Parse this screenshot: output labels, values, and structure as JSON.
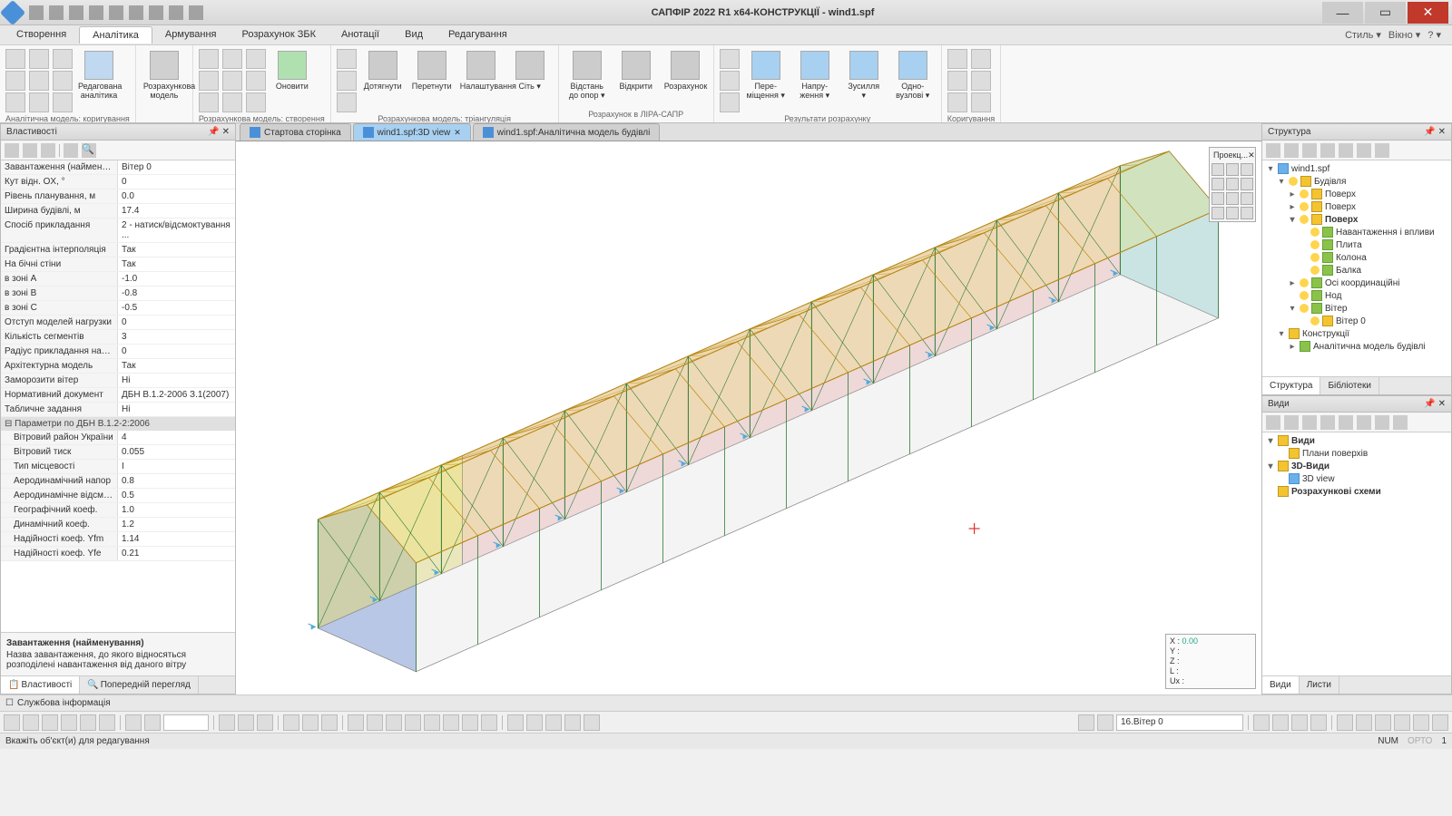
{
  "app": {
    "title": "САПФІР 2022 R1 x64-КОНСТРУКЦІЇ - wind1.spf"
  },
  "qat_count": 9,
  "menu": {
    "tabs": [
      "Створення",
      "Аналітика",
      "Армування",
      "Розрахунок ЗБК",
      "Анотації",
      "Вид",
      "Редагування"
    ],
    "active": 1,
    "right": [
      "Стиль ▾",
      "Вікно ▾",
      "? ▾"
    ]
  },
  "ribbon": {
    "groups": [
      {
        "label": "Аналітична модель: коригування",
        "big": [],
        "cols": 3,
        "trailing": [
          {
            "label": "Редагована\nаналітика",
            "icon": "#c0d8f0"
          }
        ]
      },
      {
        "label": "",
        "big": [
          {
            "label": "Розрахункова\nмодель",
            "icon": "#d0d0d0"
          }
        ]
      },
      {
        "label": "Розрахункова модель: створення",
        "big": [
          {
            "label": "Оновити",
            "icon": "#b0e0b0"
          }
        ],
        "cols": 3
      },
      {
        "label": "Розрахункова модель: тріангуляція",
        "big": [
          {
            "label": "Дотягнути",
            "icon": "#ccc"
          },
          {
            "label": "Перетнути",
            "icon": "#ccc"
          },
          {
            "label": "Налаштування",
            "icon": "#ccc"
          },
          {
            "label": "Сіть ▾",
            "icon": "#ccc"
          }
        ],
        "cols": 1
      },
      {
        "label": "Розрахунок в ЛІРА-САПР",
        "big": [
          {
            "label": "Відстань\nдо опор ▾",
            "icon": "#ccc"
          },
          {
            "label": "Відкрити",
            "icon": "#ccc"
          },
          {
            "label": "Розрахунок",
            "icon": "#ccc"
          }
        ]
      },
      {
        "label": "Результати розрахунку",
        "big": [
          {
            "label": "Пере-\nміщення ▾",
            "icon": "#a8d0f0"
          },
          {
            "label": "Напру-\nження ▾",
            "icon": "#a8d0f0"
          },
          {
            "label": "Зусилля\n▾",
            "icon": "#a8d0f0"
          },
          {
            "label": "Одно-\nвузлові ▾",
            "icon": "#a8d0f0"
          }
        ],
        "pre_col": true
      },
      {
        "label": "Коригування",
        "cols": 2
      }
    ]
  },
  "doc_tabs": [
    {
      "label": "Стартова сторінка",
      "active": false
    },
    {
      "label": "wind1.spf:3D view",
      "active": true,
      "closable": true
    },
    {
      "label": "wind1.spf:Аналітична модель будівлі",
      "active": false
    }
  ],
  "properties": {
    "title": "Властивості",
    "rows": [
      [
        "Завантаження (найменуван...",
        "Вітер 0"
      ],
      [
        "Кут відн. OX, °",
        "0"
      ],
      [
        "Рівень планування, м",
        "0.0"
      ],
      [
        "Ширина будівлі, м",
        "17.4"
      ],
      [
        "Спосіб прикладання",
        "2 - натиск/відсмоктування ..."
      ],
      [
        "Градієнтна інтерполяція",
        "Так"
      ],
      [
        "На бічні стіни",
        "Так"
      ],
      [
        "в зоні A",
        "-1.0"
      ],
      [
        "в зоні B",
        "-0.8"
      ],
      [
        "в зоні C",
        "-0.5"
      ],
      [
        "Отступ моделей нагрузки",
        "0"
      ],
      [
        "Кількість сегментів",
        "3"
      ],
      [
        "Радіус прикладання навант...",
        "0"
      ],
      [
        "Архітектурна модель",
        "Так"
      ],
      [
        "Заморозити вітер",
        "Ні"
      ],
      [
        "Нормативний документ",
        "ДБН В.1.2-2006 З.1(2007)"
      ],
      [
        "Табличне задання",
        "Ні"
      ]
    ],
    "section": "Параметри по ДБН В.1.2-2:2006",
    "rows2": [
      [
        "Вітровий район України",
        "4"
      ],
      [
        "Вітровий тиск",
        "0.055"
      ],
      [
        "Тип місцевості",
        "I"
      ],
      [
        "Аеродинамічний напор",
        "0.8"
      ],
      [
        "Аеродинамічне відсмокт...",
        "0.5"
      ],
      [
        "Географічний коеф.",
        "1.0"
      ],
      [
        "Динамічний коеф.",
        "1.2"
      ],
      [
        "Надійності коеф. Yfm",
        "1.14"
      ],
      [
        "Надійності коеф. Yfe",
        "0.21"
      ]
    ],
    "hint_title": "Завантаження (найменування)",
    "hint_body": "Назва завантаження, до якого відносяться розподілені навантаження від даного вітру",
    "tabs": [
      "Властивості",
      "Попередній перегляд"
    ]
  },
  "structure": {
    "title": "Структура",
    "items": [
      {
        "ind": 0,
        "toggle": "▾",
        "icon": "blue",
        "label": "wind1.spf"
      },
      {
        "ind": 1,
        "toggle": "▾",
        "bulb": true,
        "icon": "",
        "label": "Будівля"
      },
      {
        "ind": 2,
        "toggle": "▸",
        "bulb": true,
        "icon": "",
        "label": "Поверх"
      },
      {
        "ind": 2,
        "toggle": "▸",
        "bulb": true,
        "icon": "",
        "label": "Поверх"
      },
      {
        "ind": 2,
        "toggle": "▾",
        "bulb": true,
        "icon": "",
        "label": "Поверх",
        "bold": true
      },
      {
        "ind": 3,
        "toggle": "",
        "bulb": true,
        "icon": "green",
        "label": "Навантаження і впливи"
      },
      {
        "ind": 3,
        "toggle": "",
        "bulb": true,
        "icon": "green",
        "label": "Плита"
      },
      {
        "ind": 3,
        "toggle": "",
        "bulb": true,
        "icon": "green",
        "label": "Колона"
      },
      {
        "ind": 3,
        "toggle": "",
        "bulb": true,
        "icon": "green",
        "label": "Балка"
      },
      {
        "ind": 2,
        "toggle": "▸",
        "bulb": true,
        "icon": "green",
        "label": "Осі координаційні"
      },
      {
        "ind": 2,
        "toggle": "",
        "bulb": true,
        "icon": "green",
        "label": "Нод"
      },
      {
        "ind": 2,
        "toggle": "▾",
        "bulb": true,
        "icon": "green",
        "label": "Вітер"
      },
      {
        "ind": 3,
        "toggle": "",
        "bulb": true,
        "icon": "",
        "label": "Вітер 0"
      },
      {
        "ind": 1,
        "toggle": "▾",
        "icon": "",
        "label": "Конструкції"
      },
      {
        "ind": 2,
        "toggle": "▸",
        "icon": "green",
        "label": "Аналітична модель будівлі"
      }
    ],
    "tabs": [
      "Структура",
      "Бібліотеки"
    ]
  },
  "views": {
    "title": "Види",
    "items": [
      {
        "ind": 0,
        "toggle": "▾",
        "icon": "",
        "label": "Види",
        "bold": true
      },
      {
        "ind": 1,
        "toggle": "",
        "icon": "",
        "label": "Плани поверхів"
      },
      {
        "ind": 0,
        "toggle": "▾",
        "icon": "",
        "label": "3D-Види",
        "bold": true
      },
      {
        "ind": 1,
        "toggle": "",
        "icon": "blue",
        "label": "3D view"
      },
      {
        "ind": 0,
        "toggle": "",
        "icon": "",
        "label": "Розрахункові схеми",
        "bold": true
      }
    ],
    "tabs": [
      "Види",
      "Листи"
    ]
  },
  "view_widget": {
    "title": "Проекц..."
  },
  "coords": {
    "X": "0.00",
    "Y": "",
    "Z": "",
    "L": "",
    "Ux": ""
  },
  "info_bar": "Службова інформація",
  "tool_combo": "16.Вітер 0",
  "status": {
    "left": "Вкажіть об'єкт(и) для редагування",
    "num": "NUM",
    "orto": "ОРТО",
    "one": "1"
  },
  "building": {
    "colors": {
      "wall_blue": "rgba(100,130,200,0.45)",
      "wall_yellow": "rgba(230,220,100,0.45)",
      "wall_pink": "rgba(240,180,180,0.45)",
      "wall_cyan": "rgba(140,210,210,0.45)",
      "truss": "#b8860b",
      "column": "#2e7d32",
      "brace": "#2e7d32",
      "outline": "#888",
      "arrow": "#4faadb"
    }
  }
}
